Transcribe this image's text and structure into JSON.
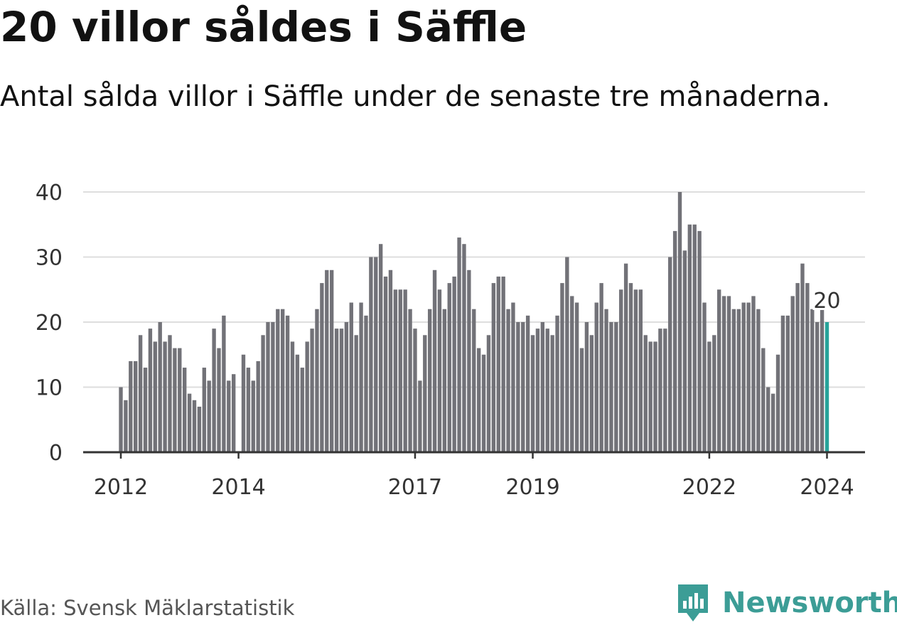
{
  "title": "20 villor såldes i Säffle",
  "subtitle": "Antal sålda villor i Säffle under de senaste tre månaderna.",
  "source": "Källa: Svensk Mäklarstatistik",
  "brand": {
    "name": "Newsworthy",
    "icon": "newsworthy-logo-icon",
    "color": "#3c9d96"
  },
  "chart_data": {
    "type": "bar",
    "title": "20 villor såldes i Säffle",
    "subtitle": "Antal sålda villor i Säffle under de senaste tre månaderna.",
    "xlabel": "",
    "ylabel": "",
    "ylim": [
      0,
      40
    ],
    "yticks": [
      0,
      10,
      20,
      30,
      40
    ],
    "grid": true,
    "bar_color": "#727278",
    "highlight_color": "#27a39a",
    "x_ticks": [
      {
        "label": "2012",
        "index": 0
      },
      {
        "label": "2014",
        "index": 24
      },
      {
        "label": "2017",
        "index": 60
      },
      {
        "label": "2019",
        "index": 84
      },
      {
        "label": "2022",
        "index": 120
      },
      {
        "label": "2024",
        "index": 144
      }
    ],
    "last_value_label": "20",
    "values": [
      10,
      8,
      14,
      14,
      18,
      13,
      19,
      17,
      20,
      17,
      18,
      16,
      16,
      13,
      9,
      8,
      7,
      13,
      11,
      19,
      16,
      21,
      11,
      12,
      0,
      15,
      13,
      11,
      14,
      18,
      20,
      20,
      22,
      22,
      21,
      17,
      15,
      13,
      17,
      19,
      22,
      26,
      28,
      28,
      19,
      19,
      20,
      23,
      18,
      23,
      21,
      30,
      30,
      32,
      27,
      28,
      25,
      25,
      25,
      22,
      19,
      11,
      18,
      22,
      28,
      25,
      22,
      26,
      27,
      33,
      32,
      28,
      22,
      16,
      15,
      18,
      26,
      27,
      27,
      22,
      23,
      20,
      20,
      21,
      18,
      19,
      20,
      19,
      18,
      21,
      26,
      30,
      24,
      23,
      16,
      20,
      18,
      23,
      26,
      22,
      20,
      20,
      25,
      29,
      26,
      25,
      25,
      18,
      17,
      17,
      19,
      19,
      30,
      34,
      40,
      31,
      35,
      35,
      34,
      23,
      17,
      18,
      25,
      24,
      24,
      22,
      22,
      23,
      23,
      24,
      22,
      16,
      10,
      9,
      15,
      21,
      21,
      24,
      26,
      29,
      26,
      22,
      20,
      22,
      20
    ]
  }
}
